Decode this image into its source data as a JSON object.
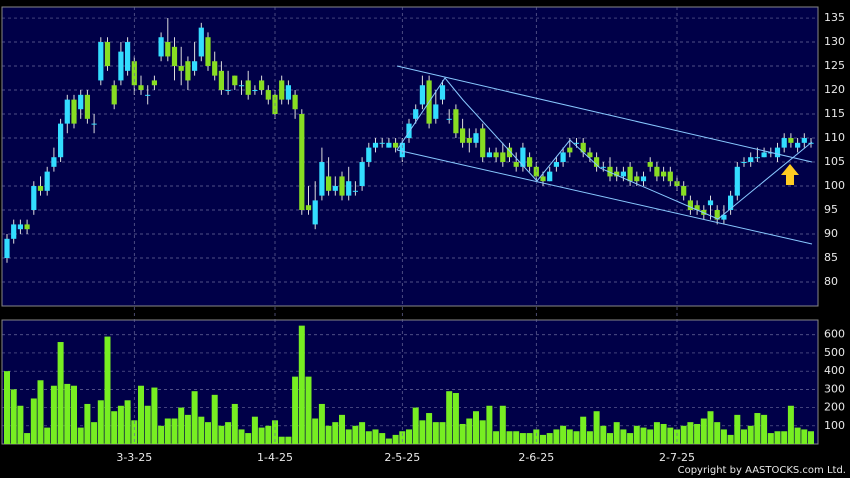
{
  "chart_data": [
    {
      "type": "candlestick",
      "up_color": "#33ddff",
      "down_color": "#88dd22",
      "wick_color": "#dddddd",
      "ylim": [
        75,
        137.3
      ],
      "yticks": [
        80,
        85,
        90,
        95,
        100,
        105,
        110,
        115,
        120,
        125,
        130,
        135
      ],
      "grid": true,
      "open": [
        85,
        89,
        91,
        92,
        95,
        100,
        99,
        104,
        106,
        113,
        118,
        116,
        119,
        113,
        122,
        130,
        121,
        122,
        124,
        126,
        121,
        119,
        122,
        127,
        130,
        129,
        125,
        126,
        124,
        127,
        131,
        126,
        124,
        120,
        123,
        121,
        122,
        120,
        122,
        120,
        119,
        122,
        118,
        119,
        115,
        96,
        92,
        98,
        102,
        99,
        102,
        98,
        99,
        100,
        105,
        108,
        109,
        108,
        109,
        106,
        110,
        114,
        117,
        122,
        114,
        118,
        114,
        116,
        112,
        110,
        109,
        112,
        106,
        107,
        107,
        108,
        105,
        104,
        106,
        104,
        102,
        101,
        104,
        105,
        108,
        109,
        109,
        107,
        106,
        104,
        104,
        103,
        102,
        104,
        102,
        101,
        105,
        104,
        103,
        103,
        101,
        100,
        97,
        96,
        95,
        96,
        95,
        93,
        95,
        98,
        105,
        105,
        106,
        106,
        107,
        106,
        108,
        110,
        108,
        109,
        109
      ],
      "high": [
        90,
        93,
        93,
        93,
        101,
        102,
        104,
        108,
        114,
        119,
        119,
        120,
        120,
        115,
        131,
        131,
        122,
        130,
        131,
        127,
        123,
        121,
        123,
        132,
        135,
        131,
        129,
        127,
        130,
        134,
        132,
        128,
        126,
        124,
        123,
        122,
        124,
        121,
        123,
        121,
        120,
        123,
        122,
        120,
        116,
        100,
        101,
        108,
        106,
        102,
        103,
        104,
        101,
        106,
        109,
        110,
        110,
        110,
        110,
        110,
        114,
        117,
        123,
        123,
        120,
        122,
        116,
        117,
        114,
        112,
        112,
        113,
        108,
        108,
        109,
        109,
        107,
        109,
        107,
        105,
        103,
        104,
        106,
        108,
        110,
        110,
        110,
        108,
        107,
        105,
        106,
        104,
        104,
        105,
        103,
        103,
        106,
        105,
        104,
        104,
        102,
        101,
        98,
        97,
        96,
        98,
        96,
        96,
        99,
        105,
        106,
        107,
        108,
        108,
        108,
        109,
        111,
        111,
        110,
        111,
        110
      ],
      "low": [
        84,
        88,
        90,
        90,
        94,
        98,
        98,
        103,
        105,
        111,
        112,
        114,
        113,
        111,
        121,
        124,
        116,
        121,
        123,
        119,
        119,
        117,
        120,
        126,
        126,
        122,
        121,
        120,
        123,
        126,
        124,
        122,
        119,
        119,
        120,
        119,
        118,
        119,
        119,
        117,
        114,
        117,
        117,
        114,
        94,
        94,
        91,
        97,
        98,
        98,
        97,
        97,
        98,
        99,
        104,
        107,
        108,
        108,
        107,
        105,
        109,
        113,
        116,
        112,
        113,
        117,
        113,
        110,
        108,
        107,
        108,
        105,
        106,
        105,
        104,
        105,
        103,
        103,
        103,
        101,
        100,
        101,
        103,
        104,
        106,
        108,
        106,
        105,
        103,
        103,
        101,
        101,
        101,
        100,
        100,
        100,
        103,
        101,
        101,
        100,
        99,
        97,
        94,
        94,
        93,
        93,
        92,
        92,
        94,
        97,
        104,
        104,
        105,
        106,
        106,
        105,
        107,
        108,
        107,
        108,
        108
      ],
      "close": [
        89,
        92,
        92,
        91,
        100,
        99,
        103,
        106,
        113,
        118,
        113,
        119,
        114,
        113,
        130,
        125,
        117,
        128,
        130,
        121,
        120,
        119,
        121,
        131,
        127,
        125,
        124,
        122,
        126,
        133,
        125,
        123,
        120,
        120,
        121,
        121,
        119,
        120,
        120,
        118,
        115,
        118,
        121,
        116,
        95,
        95,
        97,
        105,
        99,
        100,
        98,
        101,
        99,
        105,
        108,
        109,
        109,
        109,
        108,
        109,
        113,
        116,
        121,
        113,
        117,
        121,
        114,
        111,
        109,
        109,
        111,
        106,
        107,
        106,
        105,
        106,
        104,
        108,
        104,
        102,
        101,
        103,
        105,
        107,
        107,
        109,
        107,
        106,
        104,
        104,
        102,
        102,
        103,
        101,
        101,
        102,
        104,
        102,
        102,
        101,
        100,
        98,
        95,
        95,
        94,
        97,
        93,
        94,
        98,
        104,
        105,
        106,
        106,
        107,
        107,
        108,
        110,
        109,
        109,
        110,
        109
      ]
    },
    {
      "type": "bar",
      "color": "#77ee22",
      "ylim": [
        0,
        681
      ],
      "yticks": [
        100,
        200,
        300,
        400,
        500,
        600
      ],
      "grid": true,
      "categories": [
        null,
        null,
        null,
        null,
        null,
        null,
        null,
        null,
        null,
        null,
        null,
        null,
        null,
        null,
        null,
        null,
        null,
        null,
        null,
        "3-3-25",
        null,
        null,
        null,
        null,
        null,
        null,
        null,
        null,
        null,
        null,
        null,
        null,
        null,
        null,
        null,
        null,
        null,
        null,
        null,
        null,
        "1-4-25",
        null,
        null,
        null,
        null,
        null,
        null,
        null,
        null,
        null,
        null,
        null,
        null,
        null,
        null,
        null,
        null,
        null,
        null,
        "2-5-25",
        null,
        null,
        null,
        null,
        null,
        null,
        null,
        null,
        null,
        null,
        null,
        null,
        null,
        null,
        null,
        null,
        null,
        null,
        null,
        "2-6-25",
        null,
        null,
        null,
        null,
        null,
        null,
        null,
        null,
        null,
        null,
        null,
        null,
        null,
        null,
        null,
        null,
        null,
        null,
        null,
        null,
        "2-7-25",
        null,
        null,
        null,
        null,
        null,
        null,
        null,
        null,
        null,
        null,
        null,
        null,
        null,
        null,
        null,
        null,
        null,
        null,
        null,
        null
      ],
      "values": [
        400,
        300,
        210,
        60,
        250,
        350,
        90,
        320,
        560,
        330,
        320,
        90,
        220,
        120,
        240,
        590,
        180,
        210,
        240,
        130,
        320,
        210,
        310,
        100,
        140,
        140,
        200,
        160,
        290,
        150,
        120,
        270,
        100,
        120,
        220,
        80,
        60,
        150,
        90,
        100,
        130,
        40,
        40,
        370,
        650,
        370,
        140,
        220,
        100,
        120,
        160,
        80,
        100,
        120,
        70,
        80,
        60,
        30,
        50,
        70,
        80,
        200,
        130,
        170,
        120,
        120,
        290,
        280,
        110,
        140,
        180,
        130,
        210,
        70,
        210,
        70,
        70,
        60,
        60,
        80,
        50,
        60,
        80,
        100,
        80,
        70,
        150,
        70,
        180,
        100,
        60,
        120,
        80,
        60,
        100,
        90,
        80,
        120,
        110,
        90,
        80,
        100,
        120,
        110,
        140,
        180,
        120,
        80,
        50,
        160,
        80,
        100,
        170,
        160,
        60,
        70,
        70,
        210,
        90,
        80,
        70
      ]
    }
  ],
  "copyright": "Copyright by AASTOCKS.com Ltd."
}
